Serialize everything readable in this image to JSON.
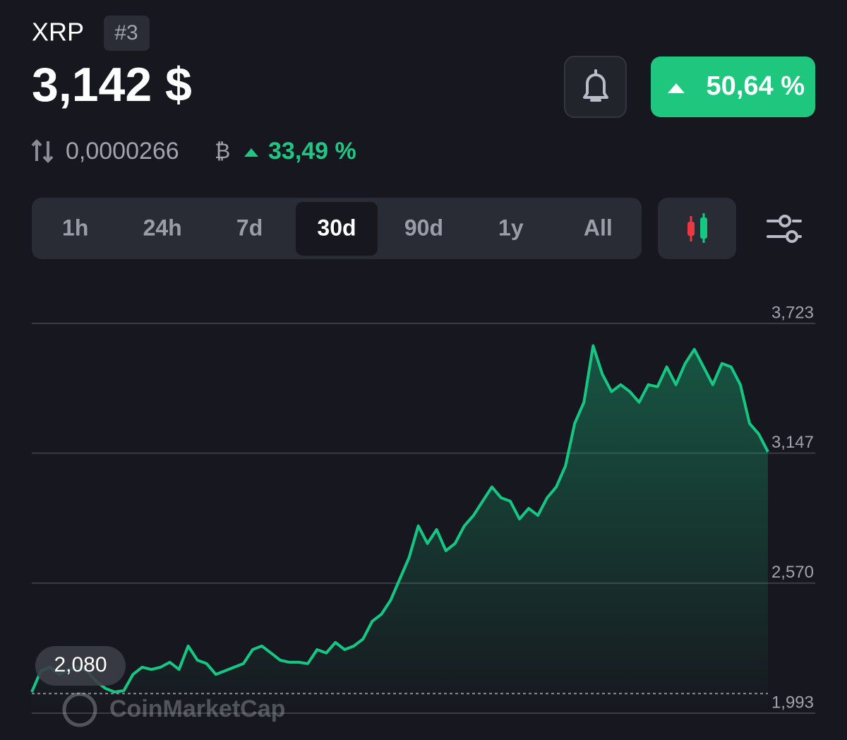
{
  "header": {
    "symbol": "XRP",
    "rank": "#3",
    "price": "3,142 $",
    "change": "50,64 %",
    "btc_price": "0,0000266",
    "btc_symbol": "₿",
    "btc_change": "33,49 %"
  },
  "tabs": {
    "items": [
      "1h",
      "24h",
      "7d",
      "30d",
      "90d",
      "1y",
      "All"
    ],
    "selected": 3
  },
  "watermark": "CoinMarketCap",
  "chart_data": {
    "type": "line",
    "color": "#16c784",
    "values": [
      2.087,
      2.181,
      2.197,
      2.165,
      2.187,
      2.197,
      2.181,
      2.134,
      2.103,
      2.087,
      2.093,
      2.165,
      2.197,
      2.187,
      2.197,
      2.219,
      2.187,
      2.291,
      2.228,
      2.213,
      2.165,
      2.181,
      2.197,
      2.213,
      2.275,
      2.291,
      2.26,
      2.228,
      2.219,
      2.219,
      2.213,
      2.275,
      2.26,
      2.307,
      2.275,
      2.291,
      2.322,
      2.401,
      2.432,
      2.495,
      2.589,
      2.683,
      2.824,
      2.746,
      2.808,
      2.714,
      2.746,
      2.824,
      2.871,
      2.934,
      2.997,
      2.949,
      2.934,
      2.855,
      2.902,
      2.871,
      2.949,
      2.997,
      3.091,
      3.279,
      3.373,
      3.624,
      3.498,
      3.42,
      3.451,
      3.42,
      3.373,
      3.451,
      3.442,
      3.53,
      3.451,
      3.545,
      3.608,
      3.53,
      3.451,
      3.545,
      3.53,
      3.451,
      3.279,
      3.232,
      3.153
    ],
    "ylim": [
      1.993,
      3.723
    ],
    "yticks": [
      {
        "value": 3.723,
        "label": "3,723"
      },
      {
        "value": 3.147,
        "label": "3,147"
      },
      {
        "value": 2.57,
        "label": "2,570"
      },
      {
        "value": 1.993,
        "label": "1,993"
      }
    ],
    "grid": true,
    "start_value": {
      "value": 2.08,
      "label": "2,080"
    }
  }
}
